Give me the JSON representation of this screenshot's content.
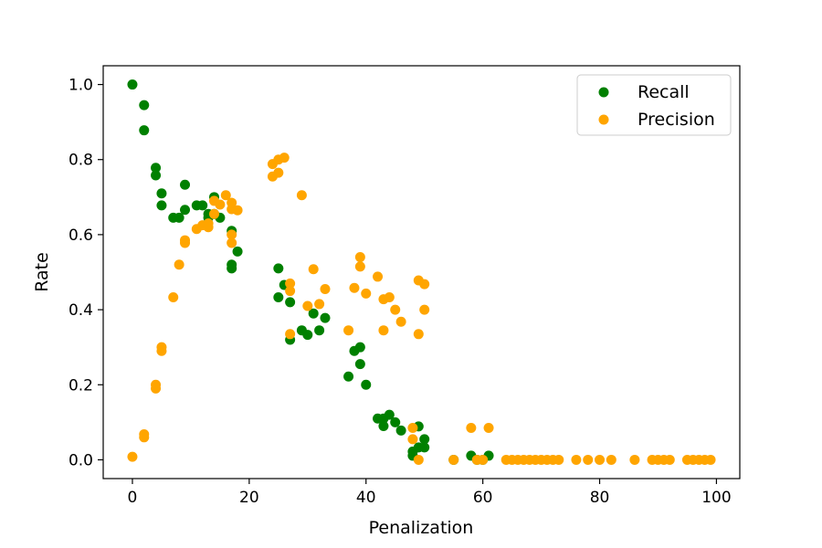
{
  "chart_data": {
    "type": "scatter",
    "xlabel": "Penalization",
    "ylabel": "Rate",
    "xlim": [
      -5,
      104
    ],
    "ylim": [
      -0.05,
      1.05
    ],
    "xticks": [
      "0",
      "20",
      "40",
      "60",
      "80",
      "100"
    ],
    "yticks": [
      "0.0",
      "0.2",
      "0.4",
      "0.6",
      "0.8",
      "1.0"
    ],
    "grid": false,
    "legend_position": "top-right",
    "series": [
      {
        "name": "Recall",
        "color": "#008000",
        "points": [
          [
            0,
            1.0
          ],
          [
            2,
            0.945
          ],
          [
            2,
            0.878
          ],
          [
            4,
            0.778
          ],
          [
            4,
            0.758
          ],
          [
            5,
            0.71
          ],
          [
            5,
            0.678
          ],
          [
            7,
            0.645
          ],
          [
            8,
            0.645
          ],
          [
            9,
            0.733
          ],
          [
            9,
            0.666
          ],
          [
            11,
            0.678
          ],
          [
            12,
            0.678
          ],
          [
            13,
            0.655
          ],
          [
            13,
            0.645
          ],
          [
            14,
            0.7
          ],
          [
            14,
            0.655
          ],
          [
            15,
            0.645
          ],
          [
            17,
            0.61
          ],
          [
            17,
            0.52
          ],
          [
            17,
            0.51
          ],
          [
            18,
            0.555
          ],
          [
            25,
            0.51
          ],
          [
            25,
            0.433
          ],
          [
            26,
            0.466
          ],
          [
            27,
            0.42
          ],
          [
            27,
            0.32
          ],
          [
            29,
            0.345
          ],
          [
            30,
            0.333
          ],
          [
            31,
            0.39
          ],
          [
            32,
            0.345
          ],
          [
            33,
            0.378
          ],
          [
            37,
            0.222
          ],
          [
            38,
            0.29
          ],
          [
            39,
            0.3
          ],
          [
            39,
            0.255
          ],
          [
            40,
            0.2
          ],
          [
            42,
            0.11
          ],
          [
            43,
            0.11
          ],
          [
            43,
            0.09
          ],
          [
            44,
            0.12
          ],
          [
            45,
            0.1
          ],
          [
            46,
            0.078
          ],
          [
            48,
            0.022
          ],
          [
            48,
            0.011
          ],
          [
            49,
            0.089
          ],
          [
            49,
            0.033
          ],
          [
            50,
            0.055
          ],
          [
            50,
            0.033
          ],
          [
            55,
            0.0
          ],
          [
            58,
            0.011
          ],
          [
            59,
            0.0
          ],
          [
            60,
            0.0
          ],
          [
            61,
            0.011
          ]
        ]
      },
      {
        "name": "Precision",
        "color": "#ffa500",
        "points": [
          [
            0,
            0.008
          ],
          [
            2,
            0.068
          ],
          [
            2,
            0.06
          ],
          [
            4,
            0.2
          ],
          [
            4,
            0.19
          ],
          [
            5,
            0.3
          ],
          [
            5,
            0.29
          ],
          [
            7,
            0.433
          ],
          [
            8,
            0.52
          ],
          [
            9,
            0.585
          ],
          [
            9,
            0.578
          ],
          [
            11,
            0.615
          ],
          [
            12,
            0.625
          ],
          [
            13,
            0.63
          ],
          [
            13,
            0.62
          ],
          [
            14,
            0.69
          ],
          [
            14,
            0.655
          ],
          [
            15,
            0.68
          ],
          [
            16,
            0.705
          ],
          [
            17,
            0.685
          ],
          [
            17,
            0.668
          ],
          [
            17,
            0.6
          ],
          [
            17,
            0.578
          ],
          [
            18,
            0.665
          ],
          [
            24,
            0.788
          ],
          [
            24,
            0.755
          ],
          [
            25,
            0.8
          ],
          [
            25,
            0.765
          ],
          [
            26,
            0.805
          ],
          [
            27,
            0.47
          ],
          [
            27,
            0.45
          ],
          [
            27,
            0.335
          ],
          [
            29,
            0.705
          ],
          [
            30,
            0.41
          ],
          [
            31,
            0.508
          ],
          [
            32,
            0.415
          ],
          [
            33,
            0.455
          ],
          [
            37,
            0.345
          ],
          [
            38,
            0.458
          ],
          [
            39,
            0.54
          ],
          [
            39,
            0.515
          ],
          [
            40,
            0.443
          ],
          [
            42,
            0.488
          ],
          [
            43,
            0.428
          ],
          [
            43,
            0.345
          ],
          [
            44,
            0.433
          ],
          [
            45,
            0.4
          ],
          [
            46,
            0.368
          ],
          [
            48,
            0.085
          ],
          [
            48,
            0.055
          ],
          [
            49,
            0.478
          ],
          [
            49,
            0.335
          ],
          [
            49,
            0.0
          ],
          [
            50,
            0.468
          ],
          [
            50,
            0.4
          ],
          [
            55,
            0.0
          ],
          [
            58,
            0.085
          ],
          [
            59,
            0.0
          ],
          [
            60,
            0.0
          ],
          [
            61,
            0.085
          ],
          [
            64,
            0.0
          ],
          [
            65,
            0.0
          ],
          [
            66,
            0.0
          ],
          [
            67,
            0.0
          ],
          [
            68,
            0.0
          ],
          [
            69,
            0.0
          ],
          [
            70,
            0.0
          ],
          [
            71,
            0.0
          ],
          [
            72,
            0.0
          ],
          [
            73,
            0.0
          ],
          [
            76,
            0.0
          ],
          [
            78,
            0.0
          ],
          [
            80,
            0.0
          ],
          [
            82,
            0.0
          ],
          [
            86,
            0.0
          ],
          [
            89,
            0.0
          ],
          [
            90,
            0.0
          ],
          [
            91,
            0.0
          ],
          [
            92,
            0.0
          ],
          [
            95,
            0.0
          ],
          [
            96,
            0.0
          ],
          [
            97,
            0.0
          ],
          [
            98,
            0.0
          ],
          [
            99,
            0.0
          ]
        ]
      }
    ]
  }
}
